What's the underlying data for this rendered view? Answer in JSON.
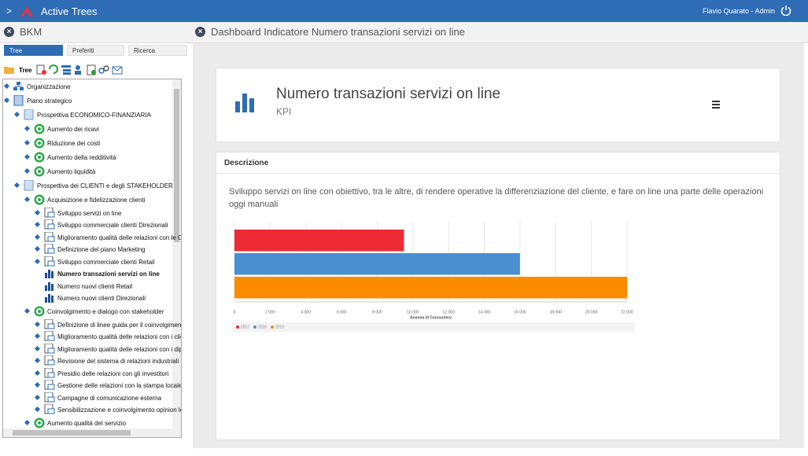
{
  "header": {
    "title": "Active Trees",
    "user": "Flavio Quarato - Admin"
  },
  "sidebar": {
    "title": "BKM",
    "tabs": [
      "Tree",
      "Preferiti",
      "Ricerca"
    ],
    "toolbar_label": "Tree",
    "selected": 14,
    "tree": [
      {
        "label": "Organizzazione",
        "level": 0,
        "kind": "org"
      },
      {
        "label": "Piano strategico",
        "level": 0,
        "kind": "plan"
      },
      {
        "label": "Prospettiva ECONOMICO-FINANZIARIA",
        "level": 1,
        "kind": "perspective"
      },
      {
        "label": "Aumento dei ricavi",
        "level": 2,
        "kind": "objective"
      },
      {
        "label": "Riduzione dei costi",
        "level": 2,
        "kind": "objective"
      },
      {
        "label": "Aumento della redditività",
        "level": 2,
        "kind": "objective"
      },
      {
        "label": "Aumento liquidità",
        "level": 2,
        "kind": "objective"
      },
      {
        "label": "Prospettiva dei CLIENTI e degli STAKEHOLDER",
        "level": 1,
        "kind": "perspective"
      },
      {
        "label": "Acquisizione e fidelizzazione clienti",
        "level": 2,
        "kind": "objective"
      },
      {
        "label": "Sviluppo servizi on line",
        "level": 3,
        "kind": "action"
      },
      {
        "label": "Sviluppo commerciale clienti Direzionali",
        "level": 3,
        "kind": "action"
      },
      {
        "label": "Miglioramento qualità delle relazioni con le On",
        "level": 3,
        "kind": "action"
      },
      {
        "label": "Definizione del piano Marketing",
        "level": 3,
        "kind": "action"
      },
      {
        "label": "Sviluppo commerciale clienti Retail",
        "level": 3,
        "kind": "action"
      },
      {
        "label": "Numero transazioni servizi on line",
        "level": 3,
        "kind": "kpi"
      },
      {
        "label": "Numero nuovi clienti Retail",
        "level": 3,
        "kind": "kpi"
      },
      {
        "label": "Numero nuovi clienti Direzionali",
        "level": 3,
        "kind": "kpi"
      },
      {
        "label": "Coinvolgimento e dialogo con stakeholder",
        "level": 2,
        "kind": "objective"
      },
      {
        "label": "Definizione di linee guida per il coinvolgimento",
        "level": 3,
        "kind": "action"
      },
      {
        "label": "Miglioramento qualità delle relazioni con i clier",
        "level": 3,
        "kind": "action"
      },
      {
        "label": "Miglioramento qualità delle relazioni con i dipe",
        "level": 3,
        "kind": "action"
      },
      {
        "label": "Revisione del sistema di relazioni industriali",
        "level": 3,
        "kind": "action"
      },
      {
        "label": "Presidio delle relazioni con gli investitori",
        "level": 3,
        "kind": "action"
      },
      {
        "label": "Gestione delle relazioni con la stampa locale",
        "level": 3,
        "kind": "action"
      },
      {
        "label": "Campagne di comunicazione esterna",
        "level": 3,
        "kind": "action"
      },
      {
        "label": "Sensibilizzazione e coinvolgimento opinion lea",
        "level": 3,
        "kind": "action"
      },
      {
        "label": "Aumento qualità del servizio",
        "level": 2,
        "kind": "objective"
      }
    ]
  },
  "main": {
    "title": "Dashboard Indicatore Numero transazioni servizi on line",
    "kpi": {
      "name": "Numero transazioni servizi on line",
      "subtitle": "KPI"
    },
    "description": {
      "heading": "Descrizione",
      "text": "Sviluppo servizi on line con obiettivo, tra le altre, di rendere operative la differenziazione del cliente, e fare on line una parte delle operazioni oggi manuali"
    }
  },
  "chart_data": {
    "type": "bar",
    "orientation": "horizontal",
    "categories": [
      null
    ],
    "series": [
      {
        "name": "2017",
        "color": "#ee2a35",
        "values": [
          9500
        ]
      },
      {
        "name": "2016",
        "color": "#4a8fd0",
        "values": [
          16000
        ]
      },
      {
        "name": "2015",
        "color": "#fb8c00",
        "values": [
          22000
        ]
      }
    ],
    "xlim": [
      0,
      22000
    ],
    "xticks": [
      0,
      {
        "value": 2000,
        "label": "2 000"
      },
      {
        "value": 4000,
        "label": "4 000"
      },
      {
        "value": 6000,
        "label": "6 000"
      },
      {
        "value": 8000,
        "label": "8 000"
      },
      {
        "value": 10000,
        "label": "10 000"
      },
      {
        "value": 12000,
        "label": "12 000"
      },
      {
        "value": 14000,
        "label": "14 000"
      },
      {
        "value": 16000,
        "label": "16 000"
      },
      {
        "value": 18000,
        "label": "18 000"
      },
      {
        "value": 20000,
        "label": "20 000"
      },
      {
        "value": 22000,
        "label": "22 000"
      }
    ],
    "x_label": "Somma di Consuntivo",
    "grid": true,
    "legend": "bottom-left"
  }
}
